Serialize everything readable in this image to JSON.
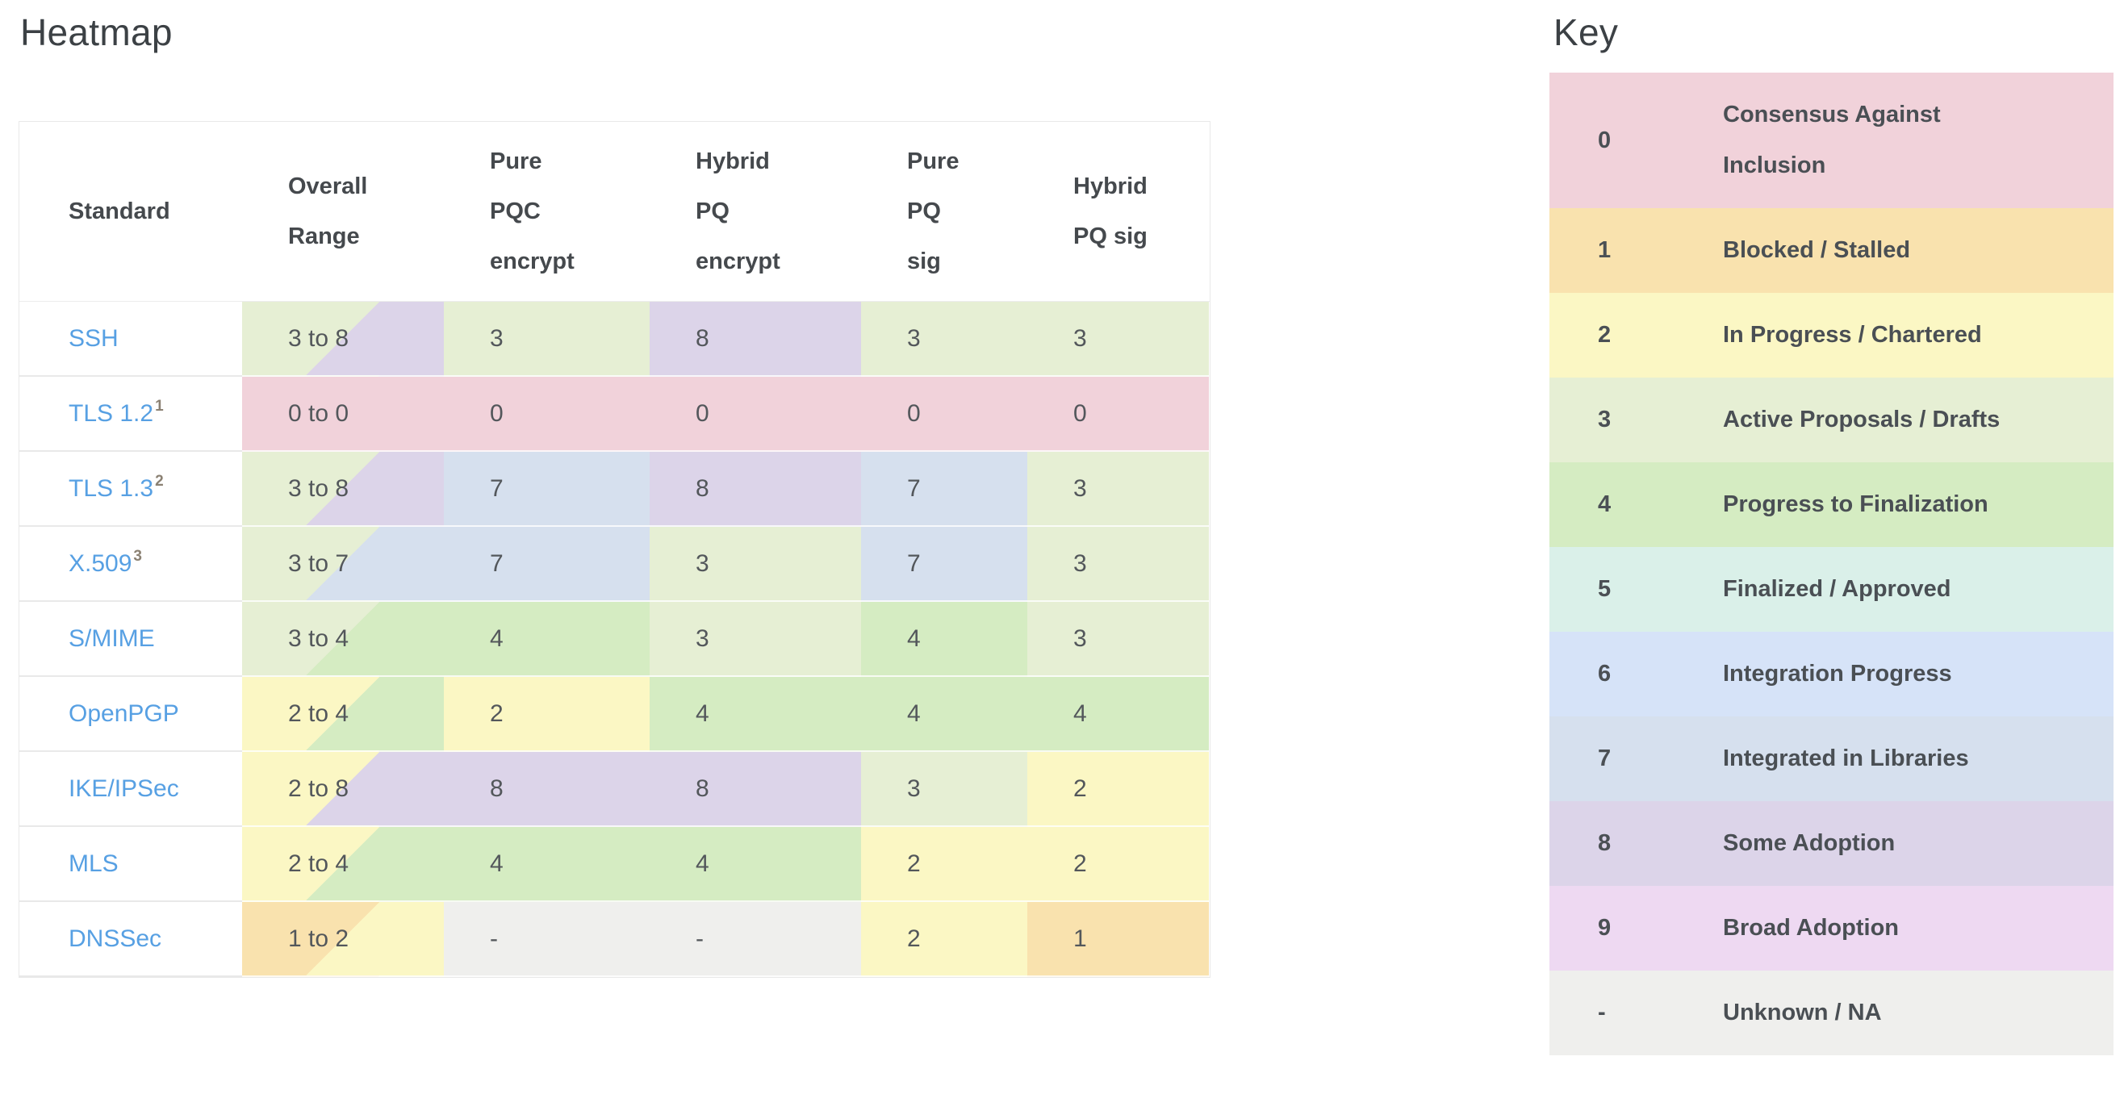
{
  "heatmap_section": {
    "title": "Heatmap"
  },
  "key_section": {
    "title": "Key"
  },
  "colors": {
    "link": "#57a0e3",
    "superscript": "#8b8173",
    "title_text": "#3c4145",
    "header_text": "#45494d",
    "value_text": "#53575b",
    "table_border": "#e9e9e9"
  },
  "chart_data": {
    "type": "heatmap",
    "columns": [
      {
        "label": "Standard",
        "lines": [
          "Standard"
        ]
      },
      {
        "label": "Overall Range",
        "lines": [
          "Overall",
          "Range"
        ]
      },
      {
        "label": "Pure PQC encrypt",
        "lines": [
          "Pure",
          "PQC",
          "encrypt"
        ]
      },
      {
        "label": "Hybrid PQ encrypt",
        "lines": [
          "Hybrid",
          "PQ",
          "encrypt"
        ]
      },
      {
        "label": "Pure PQ sig",
        "lines": [
          "Pure",
          "PQ",
          "sig"
        ]
      },
      {
        "label": "Hybrid PQ sig",
        "lines": [
          "Hybrid",
          "PQ sig"
        ]
      }
    ],
    "rows": [
      {
        "standard": "SSH",
        "superscript": "",
        "range": {
          "label": "3 to 8",
          "min": "3",
          "max": "8"
        },
        "values": [
          "3",
          "8",
          "3",
          "3"
        ]
      },
      {
        "standard": "TLS 1.2",
        "superscript": "1",
        "range": {
          "label": "0 to 0",
          "min": "0",
          "max": "0"
        },
        "values": [
          "0",
          "0",
          "0",
          "0"
        ]
      },
      {
        "standard": "TLS 1.3",
        "superscript": "2",
        "range": {
          "label": "3 to 8",
          "min": "3",
          "max": "8"
        },
        "values": [
          "7",
          "8",
          "7",
          "3"
        ]
      },
      {
        "standard": "X.509",
        "superscript": "3",
        "range": {
          "label": "3 to 7",
          "min": "3",
          "max": "7"
        },
        "values": [
          "7",
          "3",
          "7",
          "3"
        ]
      },
      {
        "standard": "S/MIME",
        "superscript": "",
        "range": {
          "label": "3 to 4",
          "min": "3",
          "max": "4"
        },
        "values": [
          "4",
          "3",
          "4",
          "3"
        ]
      },
      {
        "standard": "OpenPGP",
        "superscript": "",
        "range": {
          "label": "2 to 4",
          "min": "2",
          "max": "4"
        },
        "values": [
          "2",
          "4",
          "4",
          "4"
        ]
      },
      {
        "standard": "IKE/IPSec",
        "superscript": "",
        "range": {
          "label": "2 to 8",
          "min": "2",
          "max": "8"
        },
        "values": [
          "8",
          "8",
          "3",
          "2"
        ]
      },
      {
        "standard": "MLS",
        "superscript": "",
        "range": {
          "label": "2 to 4",
          "min": "2",
          "max": "4"
        },
        "values": [
          "4",
          "4",
          "2",
          "2"
        ]
      },
      {
        "standard": "DNSSec",
        "superscript": "",
        "range": {
          "label": "1 to 2",
          "min": "1",
          "max": "2"
        },
        "values": [
          "-",
          "-",
          "2",
          "1"
        ]
      }
    ],
    "legend": [
      {
        "value": "0",
        "label": "Consensus Against Inclusion"
      },
      {
        "value": "1",
        "label": "Blocked / Stalled"
      },
      {
        "value": "2",
        "label": "In Progress / Chartered"
      },
      {
        "value": "3",
        "label": "Active Proposals / Drafts"
      },
      {
        "value": "4",
        "label": "Progress to Finalization"
      },
      {
        "value": "5",
        "label": "Finalized / Approved"
      },
      {
        "value": "6",
        "label": "Integration Progress"
      },
      {
        "value": "7",
        "label": "Integrated in Libraries"
      },
      {
        "value": "8",
        "label": "Some Adoption"
      },
      {
        "value": "9",
        "label": "Broad Adoption"
      },
      {
        "value": "-",
        "label": "Unknown / NA"
      }
    ],
    "value_colors": {
      "0": "#f1d2da",
      "1": "#f9e2ae",
      "2": "#fbf7c4",
      "3": "#e6efd4",
      "4": "#d5ecc2",
      "5": "#daf0e9",
      "6": "#d6e3f8",
      "7": "#d6e0ee",
      "8": "#dcd4e9",
      "9": "#eed9f2",
      "-": "#efefed"
    }
  }
}
